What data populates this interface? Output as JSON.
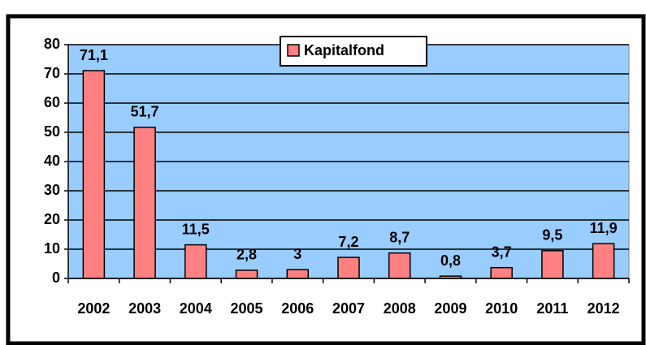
{
  "chart_data": {
    "type": "bar",
    "categories": [
      "2002",
      "2003",
      "2004",
      "2005",
      "2006",
      "2007",
      "2008",
      "2009",
      "2010",
      "2011",
      "2012"
    ],
    "series": [
      {
        "name": "Kapitalfond",
        "color": "#ff8080",
        "values": [
          71.1,
          51.7,
          11.5,
          2.8,
          3,
          7.2,
          8.7,
          0.8,
          3.7,
          9.5,
          11.9
        ],
        "value_labels": [
          "71,1",
          "51,7",
          "11,5",
          "2,8",
          "3",
          "7,2",
          "8,7",
          "0,8",
          "3,7",
          "9,5",
          "11,9"
        ]
      }
    ],
    "ylim": [
      0,
      80
    ],
    "yticks": [
      0,
      10,
      20,
      30,
      40,
      50,
      60,
      70,
      80
    ],
    "grid": true,
    "legend": "top",
    "plot_background": "#99ccff"
  }
}
